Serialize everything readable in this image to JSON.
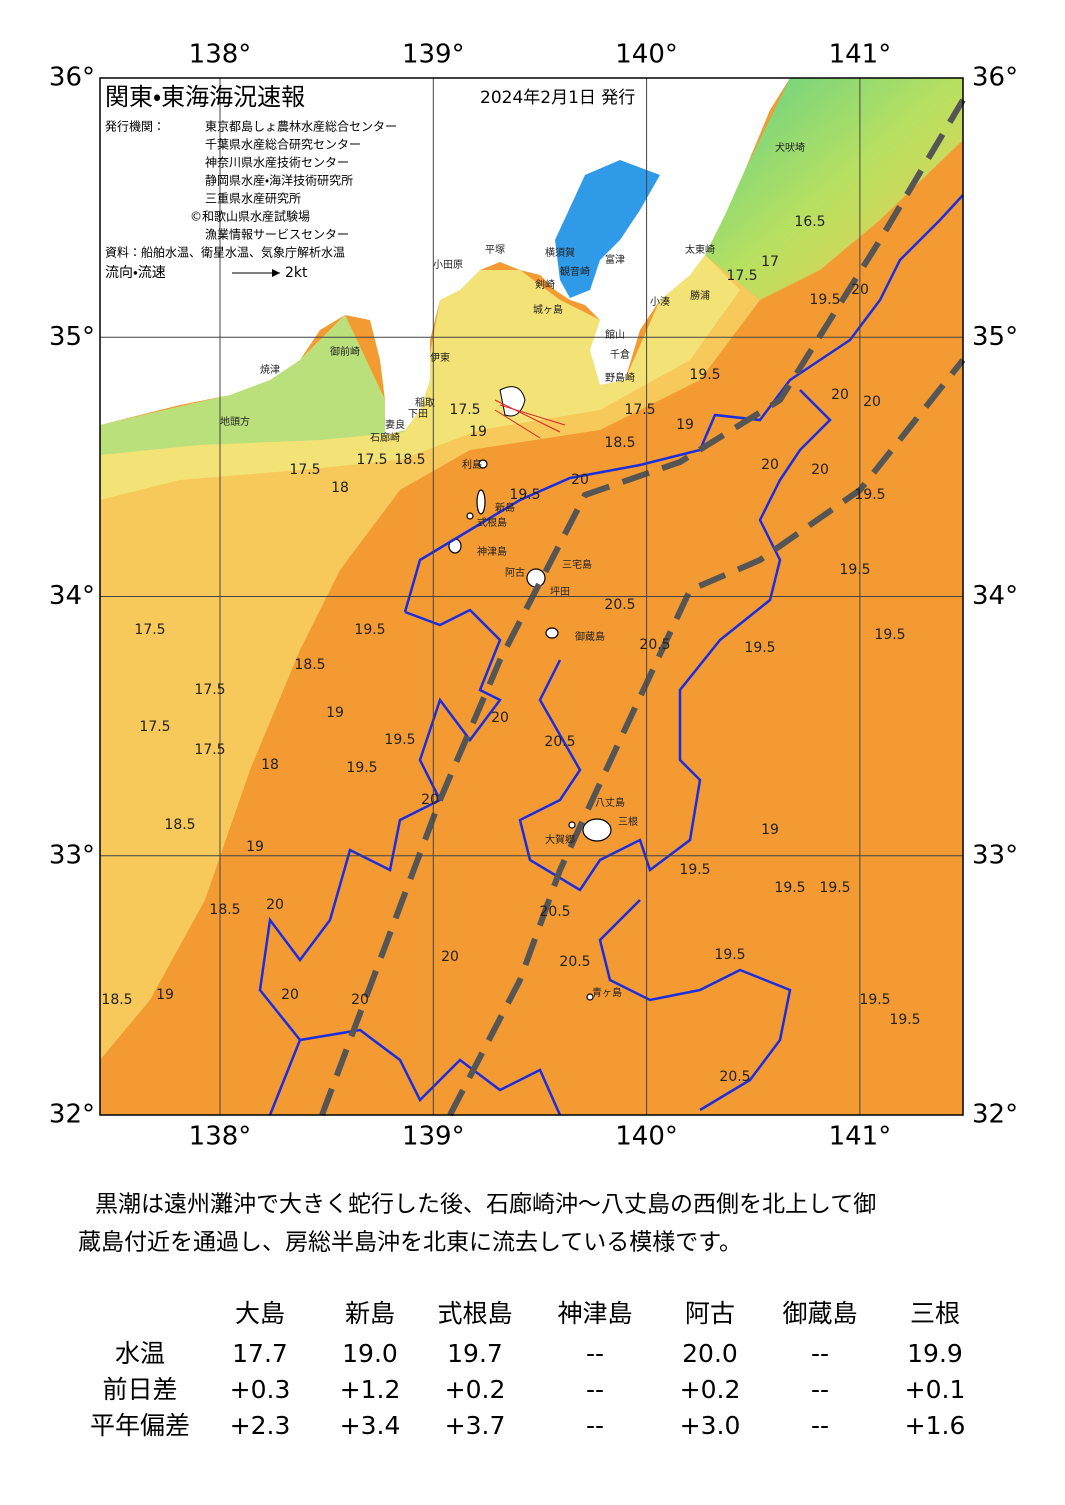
{
  "header": {
    "title": "関東・東海海況速報",
    "date": "2024年2月1日 発行",
    "issuer_label": "発行機関：",
    "issuers": [
      "東京都島しょ農林水産総合センター",
      "千葉県水産総合研究センター",
      "神奈川県水産技術センター",
      "静岡県水産・海洋技術研究所",
      "三重県水産研究所",
      "©和歌山県水産試験場",
      "漁業情報サービスセンター"
    ],
    "source": "資料：船舶水温、衛星水温、気象庁解析水温",
    "legend_label": "流向・流速",
    "legend_speed": "2kt"
  },
  "map": {
    "lon_ticks": [
      {
        "value": 138,
        "label": "138°"
      },
      {
        "value": 139,
        "label": "139°"
      },
      {
        "value": 140,
        "label": "140°"
      },
      {
        "value": 141,
        "label": "141°"
      }
    ],
    "lat_ticks": [
      {
        "value": 36,
        "label": "36°"
      },
      {
        "value": 35,
        "label": "35°"
      },
      {
        "value": 34,
        "label": "34°"
      },
      {
        "value": 33,
        "label": "33°"
      },
      {
        "value": 32,
        "label": "32°"
      }
    ],
    "place_names": [
      "犬吠埼",
      "太東崎",
      "勝浦",
      "小湊",
      "富津",
      "館山",
      "千倉",
      "野島崎",
      "横須賀",
      "観音崎",
      "剣崎",
      "城ヶ島",
      "平塚",
      "小田原",
      "伊東",
      "稲取",
      "下田",
      "妻良",
      "石廊崎",
      "焼津",
      "御前崎",
      "地頭方",
      "利島",
      "新島",
      "式根島",
      "神津島",
      "三宅島",
      "阿古",
      "坪田",
      "御蔵島",
      "八丈島",
      "三根",
      "大賀郷",
      "青ヶ島"
    ],
    "isotherm_labels": [
      "16.5",
      "17",
      "17.5",
      "19.5",
      "20",
      "19.5",
      "20",
      "20",
      "17.5",
      "18.5",
      "19",
      "19",
      "17.5",
      "18.5",
      "17.5",
      "18",
      "17.5",
      "19.5",
      "20",
      "20",
      "20",
      "19.5",
      "19.5",
      "20.5",
      "20.5",
      "19.5",
      "19.5",
      "17.5",
      "19.5",
      "18.5",
      "17.5",
      "19",
      "20",
      "20.5",
      "17.5",
      "17.5",
      "18",
      "19.5",
      "19.5",
      "20",
      "18.5",
      "19",
      "19",
      "19.5",
      "19.5",
      "19.5",
      "20",
      "18.5",
      "20.5",
      "20.5",
      "19.5",
      "19.5",
      "19.5",
      "20.5",
      "19",
      "18.5",
      "20",
      "20",
      "20"
    ]
  },
  "summary": [
    "黒潮は遠州灘沖で大きく蛇行した後、石廊崎沖～八丈島の西側を北上して御",
    "蔵島付近を通過し、房総半島沖を北東に流去している模様です。"
  ],
  "table": {
    "columns": [
      "大島",
      "新島",
      "式根島",
      "神津島",
      "阿古",
      "御蔵島",
      "三根"
    ],
    "rows": [
      {
        "label": "水温",
        "cells": [
          "17.7",
          "19.0",
          "19.7",
          "--",
          "20.0",
          "--",
          "19.9"
        ]
      },
      {
        "label": "前日差",
        "cells": [
          "+0.3",
          "+1.2",
          "+0.2",
          "--",
          "+0.2",
          "--",
          "+0.1"
        ]
      },
      {
        "label": "平年偏差",
        "cells": [
          "+2.3",
          "+3.4",
          "+3.7",
          "--",
          "+3.0",
          "--",
          "+1.6"
        ]
      }
    ]
  }
}
